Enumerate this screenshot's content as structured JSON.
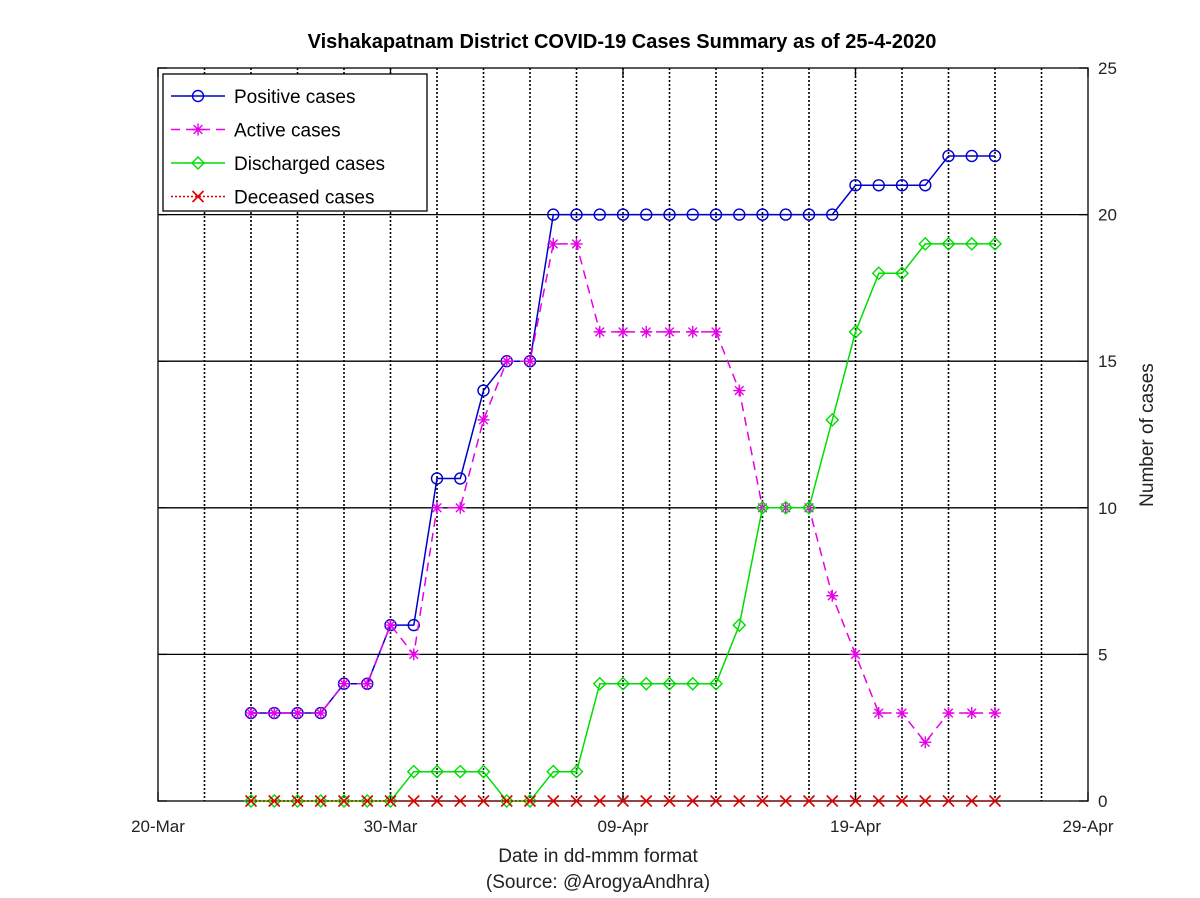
{
  "chart_data": {
    "type": "line",
    "title": "Vishakapatnam District COVID-19 Cases Summary as of 25-4-2020",
    "xlabel": "Date in dd-mmm format",
    "xsublabel": "(Source: @ArogyaAndhra)",
    "ylabel": "Number of cases",
    "x_ticks": [
      "20-Mar",
      "30-Mar",
      "09-Apr",
      "19-Apr",
      "29-Apr"
    ],
    "x_tick_days": [
      0,
      10,
      20,
      30,
      40
    ],
    "x_start_date": "2020-03-20",
    "y_ticks": [
      "0",
      "5",
      "10",
      "15",
      "20",
      "25"
    ],
    "ylim": [
      0,
      25
    ],
    "y_axis_side": "right",
    "grid": "x dotted, y solid",
    "legend_position": "top-left",
    "x": [
      "2020-03-24",
      "2020-03-25",
      "2020-03-26",
      "2020-03-27",
      "2020-03-28",
      "2020-03-29",
      "2020-03-30",
      "2020-03-31",
      "2020-04-01",
      "2020-04-02",
      "2020-04-03",
      "2020-04-04",
      "2020-04-05",
      "2020-04-06",
      "2020-04-07",
      "2020-04-08",
      "2020-04-09",
      "2020-04-10",
      "2020-04-11",
      "2020-04-12",
      "2020-04-13",
      "2020-04-14",
      "2020-04-15",
      "2020-04-16",
      "2020-04-17",
      "2020-04-18",
      "2020-04-19",
      "2020-04-20",
      "2020-04-21",
      "2020-04-22",
      "2020-04-23",
      "2020-04-24",
      "2020-04-25"
    ],
    "series": [
      {
        "name": "Positive cases",
        "color": "#0000cc",
        "marker": "circle",
        "line": "solid",
        "values": [
          3,
          3,
          3,
          3,
          4,
          4,
          6,
          6,
          11,
          11,
          14,
          15,
          15,
          20,
          20,
          20,
          20,
          20,
          20,
          20,
          20,
          20,
          20,
          20,
          20,
          20,
          21,
          21,
          21,
          21,
          22,
          22,
          22
        ]
      },
      {
        "name": "Active cases",
        "color": "#e600e6",
        "marker": "star",
        "line": "dashed",
        "values": [
          3,
          3,
          3,
          3,
          4,
          4,
          6,
          5,
          10,
          10,
          13,
          15,
          15,
          19,
          19,
          16,
          16,
          16,
          16,
          16,
          16,
          14,
          10,
          10,
          10,
          7,
          5,
          3,
          3,
          2,
          3,
          3,
          3
        ]
      },
      {
        "name": "Discharged cases",
        "color": "#00dd00",
        "marker": "diamond",
        "line": "solid",
        "values": [
          0,
          0,
          0,
          0,
          0,
          0,
          0,
          1,
          1,
          1,
          1,
          0,
          0,
          1,
          1,
          4,
          4,
          4,
          4,
          4,
          4,
          6,
          10,
          10,
          10,
          13,
          16,
          18,
          18,
          19,
          19,
          19,
          19
        ]
      },
      {
        "name": "Deceased cases",
        "color": "#dd0000",
        "marker": "x",
        "line": "dotted",
        "values": [
          0,
          0,
          0,
          0,
          0,
          0,
          0,
          0,
          0,
          0,
          0,
          0,
          0,
          0,
          0,
          0,
          0,
          0,
          0,
          0,
          0,
          0,
          0,
          0,
          0,
          0,
          0,
          0,
          0,
          0,
          0,
          0,
          0
        ]
      }
    ]
  }
}
